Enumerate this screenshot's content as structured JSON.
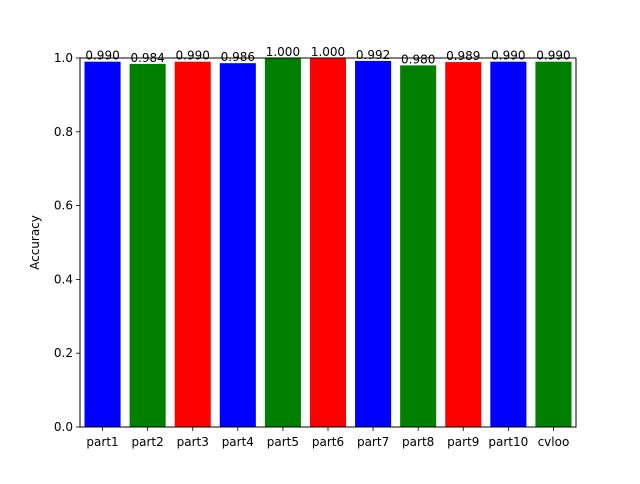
{
  "chart_data": {
    "type": "bar",
    "title": "",
    "xlabel": "",
    "ylabel": "Accuracy",
    "ylim": [
      0,
      1.0
    ],
    "yticks": [
      0.0,
      0.2,
      0.4,
      0.6,
      0.8,
      1.0
    ],
    "ytick_labels": [
      "0.0",
      "0.2",
      "0.4",
      "0.6",
      "0.8",
      "1.0"
    ],
    "grid": false,
    "categories": [
      "part1",
      "part2",
      "part3",
      "part4",
      "part5",
      "part6",
      "part7",
      "part8",
      "part9",
      "part10",
      "cvloo"
    ],
    "values": [
      0.99,
      0.984,
      0.99,
      0.986,
      1.0,
      1.0,
      0.992,
      0.98,
      0.989,
      0.99,
      0.99
    ],
    "value_labels": [
      "0.990",
      "0.984",
      "0.990",
      "0.986",
      "1.000",
      "1.000",
      "0.992",
      "0.980",
      "0.989",
      "0.990",
      "0.990"
    ],
    "bar_colors": [
      "#0000ff",
      "#008000",
      "#ff0000",
      "#0000ff",
      "#008000",
      "#ff0000",
      "#0000ff",
      "#008000",
      "#ff0000",
      "#0000ff",
      "#008000"
    ]
  }
}
